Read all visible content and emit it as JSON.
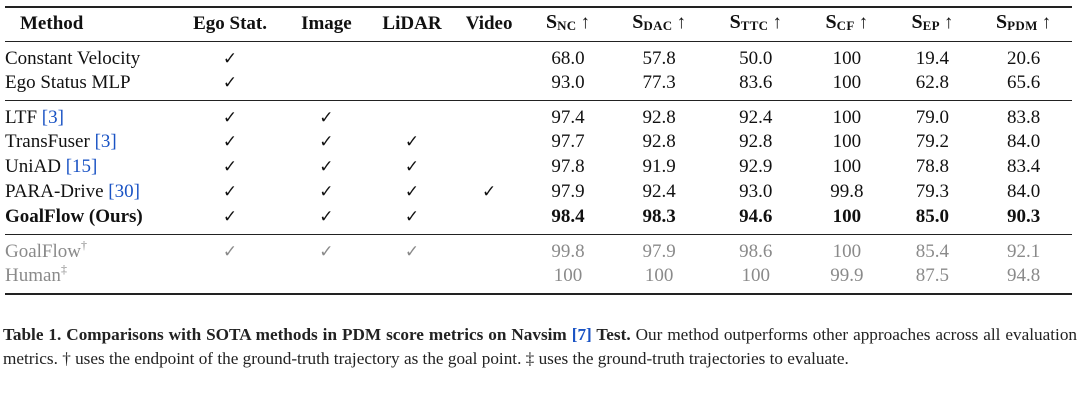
{
  "table": {
    "headers": {
      "method": "Method",
      "ego": "Ego Stat.",
      "image": "Image",
      "lidar": "LiDAR",
      "video": "Video",
      "metrics": [
        {
          "letter": "S",
          "sub": "NC",
          "arrow": "↑"
        },
        {
          "letter": "S",
          "sub": "DAC",
          "arrow": "↑"
        },
        {
          "letter": "S",
          "sub": "TTC",
          "arrow": "↑"
        },
        {
          "letter": "S",
          "sub": "CF",
          "arrow": "↑"
        },
        {
          "letter": "S",
          "sub": "EP",
          "arrow": "↑"
        },
        {
          "letter": "S",
          "sub": "PDM",
          "arrow": "↑"
        }
      ]
    },
    "check_symbol": "✓",
    "rows": [
      {
        "name": "Constant Velocity",
        "cite": "",
        "mark": "",
        "ego": "✓",
        "image": "",
        "lidar": "",
        "video": "",
        "nc": "68.0",
        "dac": "57.8",
        "ttc": "50.0",
        "cf": "100",
        "ep": "19.4",
        "pdm": "20.6"
      },
      {
        "name": "Ego Status MLP",
        "cite": "",
        "mark": "",
        "ego": "✓",
        "image": "",
        "lidar": "",
        "video": "",
        "nc": "93.0",
        "dac": "77.3",
        "ttc": "83.6",
        "cf": "100",
        "ep": "62.8",
        "pdm": "65.6"
      },
      {
        "name": "LTF ",
        "cite": "[3]",
        "mark": "",
        "ego": "✓",
        "image": "✓",
        "lidar": "",
        "video": "",
        "nc": "97.4",
        "dac": "92.8",
        "ttc": "92.4",
        "cf": "100",
        "ep": "79.0",
        "pdm": "83.8"
      },
      {
        "name": "TransFuser ",
        "cite": "[3]",
        "mark": "",
        "ego": "✓",
        "image": "✓",
        "lidar": "✓",
        "video": "",
        "nc": "97.7",
        "dac": "92.8",
        "ttc": "92.8",
        "cf": "100",
        "ep": "79.2",
        "pdm": "84.0"
      },
      {
        "name": "UniAD ",
        "cite": "[15]",
        "mark": "",
        "ego": "✓",
        "image": "✓",
        "lidar": "✓",
        "video": "",
        "nc": "97.8",
        "dac": "91.9",
        "ttc": "92.9",
        "cf": "100",
        "ep": "78.8",
        "pdm": "83.4"
      },
      {
        "name": "PARA-Drive ",
        "cite": "[30]",
        "mark": "",
        "ego": "✓",
        "image": "✓",
        "lidar": "✓",
        "video": "✓",
        "nc": "97.9",
        "dac": "92.4",
        "ttc": "93.0",
        "cf": "99.8",
        "ep": "79.3",
        "pdm": "84.0"
      },
      {
        "name": "GoalFlow (Ours)",
        "cite": "",
        "mark": "",
        "ego": "✓",
        "image": "✓",
        "lidar": "✓",
        "video": "",
        "nc": "98.4",
        "dac": "98.3",
        "ttc": "94.6",
        "cf": "100",
        "ep": "85.0",
        "pdm": "90.3"
      },
      {
        "name": "GoalFlow",
        "cite": "",
        "mark": "†",
        "ego": "✓",
        "image": "✓",
        "lidar": "✓",
        "video": "",
        "nc": "99.8",
        "dac": "97.9",
        "ttc": "98.6",
        "cf": "100",
        "ep": "85.4",
        "pdm": "92.1"
      },
      {
        "name": "Human",
        "cite": "",
        "mark": "‡",
        "ego": "",
        "image": "",
        "lidar": "",
        "video": "",
        "nc": "100",
        "dac": "100",
        "ttc": "100",
        "cf": "99.9",
        "ep": "87.5",
        "pdm": "94.8"
      }
    ]
  },
  "caption": {
    "label": "Table 1.",
    "bold_pre": "Comparisons with SOTA methods in PDM score metrics on Navsim ",
    "bold_cite": "[7]",
    "bold_post": " Test.",
    "text_1": " Our method outperforms other approaches across all evaluation metrics. ",
    "dagger": "†",
    "text_2": " uses the endpoint of the ground-truth trajectory as the goal point. ",
    "ddagger": "‡",
    "text_3": " uses the ground-truth trajectories to evaluate."
  },
  "colors": {
    "citation": "#1a53c4",
    "oracle_rows": "#8a8a8a",
    "rules": "#222222"
  }
}
